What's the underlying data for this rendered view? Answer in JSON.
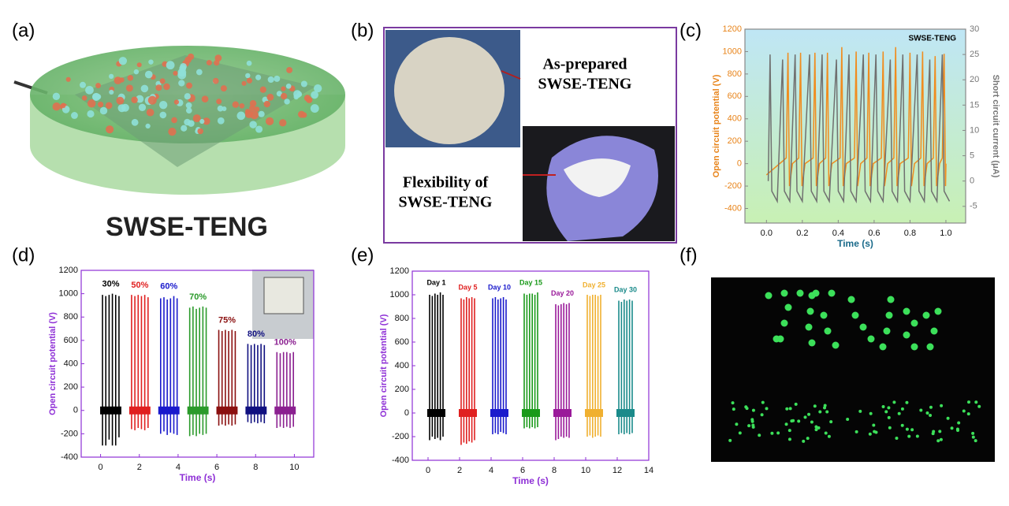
{
  "panels": {
    "a": "(a)",
    "b": "(b)",
    "c": "(c)",
    "d": "(d)",
    "e": "(e)",
    "f": "(f)"
  },
  "panel_a": {
    "caption": "SWSE-TENG"
  },
  "panel_b": {
    "top_text": [
      "As-prepared",
      "SWSE-TENG"
    ],
    "bottom_text": [
      "Flexibility of",
      "SWSE-TENG"
    ]
  },
  "chart_data": [
    {
      "type": "line",
      "title": "SWSE-TENG",
      "x_label": "Time (s)",
      "y_label": "Open circuit potential (V)",
      "y2_label": "Short circuit current (μA)",
      "xlim": [
        -0.12,
        1.11
      ],
      "ylim": [
        -530,
        1200
      ],
      "y2lim": [
        -8.3,
        30
      ],
      "xticks": [
        {
          "value": 0,
          "label": "0.0"
        },
        0.2,
        0.4,
        0.6,
        0.8,
        {
          "value": 1,
          "label": "1.0"
        }
      ],
      "yticks": [
        -400,
        -200,
        0,
        200,
        400,
        600,
        800,
        1000,
        1200
      ],
      "y2ticks": [
        -5,
        0,
        5,
        10,
        15,
        20,
        25,
        30
      ],
      "series": [
        {
          "color": "#f08c1e",
          "axis": "y",
          "x": [
            0,
            0.11,
            0.12,
            0.128,
            0.145,
            0.18,
            0.19,
            0.198,
            0.215,
            0.26,
            0.27,
            0.278,
            0.295,
            0.33,
            0.34,
            0.348,
            0.365,
            0.41,
            0.42,
            0.428,
            0.445,
            0.49,
            0.5,
            0.508,
            0.525,
            0.56,
            0.57,
            0.578,
            0.595,
            0.64,
            0.65,
            0.658,
            0.675,
            0.71,
            0.72,
            0.728,
            0.745,
            0.79,
            0.8,
            0.808,
            0.825,
            0.86,
            0.87,
            0.878,
            0.895,
            0.93,
            0.94,
            0.948,
            0.965,
            0.98,
            0.99,
            0.998,
            1.0
          ],
          "values": [
            -100,
            50,
            990,
            -200,
            0,
            50,
            990,
            -200,
            0,
            50,
            990,
            -200,
            0,
            50,
            990,
            -200,
            0,
            50,
            1040,
            -200,
            0,
            50,
            1000,
            -200,
            0,
            50,
            990,
            -200,
            0,
            50,
            1000,
            -200,
            0,
            50,
            1040,
            -200,
            0,
            50,
            990,
            -200,
            0,
            50,
            1000,
            -200,
            0,
            50,
            960,
            -200,
            0,
            50,
            980,
            -200,
            0
          ]
        },
        {
          "color": "#707070",
          "axis": "y2",
          "x": [
            0.01,
            0.02,
            0.03,
            0.06,
            0.09,
            0.1,
            0.13,
            0.16,
            0.17,
            0.2,
            0.24,
            0.25,
            0.28,
            0.31,
            0.32,
            0.35,
            0.39,
            0.4,
            0.43,
            0.46,
            0.47,
            0.5,
            0.54,
            0.55,
            0.58,
            0.61,
            0.62,
            0.65,
            0.69,
            0.7,
            0.73,
            0.76,
            0.77,
            0.8,
            0.84,
            0.85,
            0.88,
            0.91,
            0.92,
            0.95,
            0.98,
            0.99,
            1.02
          ],
          "values": [
            0,
            25,
            -2,
            -4,
            24,
            -2,
            -4,
            25,
            -2,
            -4,
            25,
            -2,
            -4,
            25,
            -2,
            -4,
            24,
            -2,
            -4,
            25,
            -2,
            -4,
            25,
            -2,
            -4,
            25,
            -2,
            -4,
            24,
            -2,
            -4,
            25,
            -2,
            -4,
            25,
            -2,
            -4,
            24,
            -2,
            -4,
            25,
            -2,
            -4
          ]
        }
      ]
    },
    {
      "type": "spike",
      "x_label": "Time (s)",
      "y_label": "Open circuit potential (V)",
      "xlim": [
        -1,
        11
      ],
      "ylim": [
        -400,
        1200
      ],
      "xticks": [
        0,
        2,
        4,
        6,
        8,
        10
      ],
      "yticks": [
        -400,
        -200,
        0,
        200,
        400,
        600,
        800,
        1000,
        1200
      ],
      "series": [
        {
          "name": "30%",
          "color": "#000000",
          "x": [
            0.1,
            0.27,
            0.44,
            0.61,
            0.78,
            0.95
          ],
          "values": [
            990,
            980,
            990,
            1000,
            990,
            980
          ],
          "lows": [
            -300,
            -300,
            -250,
            -300,
            -300,
            -230
          ]
        },
        {
          "name": "50%",
          "color": "#e02020",
          "x": [
            1.6,
            1.77,
            1.94,
            2.11,
            2.28,
            2.45
          ],
          "values": [
            990,
            980,
            990,
            980,
            990,
            970
          ],
          "lows": [
            -160,
            -170,
            -150,
            -160,
            -170,
            -150
          ]
        },
        {
          "name": "60%",
          "color": "#1a1acc",
          "x": [
            3.1,
            3.27,
            3.44,
            3.61,
            3.78,
            3.95
          ],
          "values": [
            960,
            970,
            950,
            960,
            980,
            960
          ],
          "lows": [
            -200,
            -180,
            -210,
            -190,
            -200,
            -210
          ]
        },
        {
          "name": "70%",
          "color": "#2a9a2a",
          "x": [
            4.6,
            4.77,
            4.94,
            5.11,
            5.28,
            5.45
          ],
          "values": [
            880,
            890,
            870,
            880,
            890,
            880
          ],
          "lows": [
            -220,
            -210,
            -220,
            -200,
            -210,
            -200
          ]
        },
        {
          "name": "75%",
          "color": "#8b1010",
          "x": [
            6.1,
            6.27,
            6.44,
            6.61,
            6.78,
            6.95
          ],
          "values": [
            690,
            680,
            690,
            680,
            690,
            680
          ],
          "lows": [
            -130,
            -120,
            -130,
            -120,
            -130,
            -120
          ]
        },
        {
          "name": "80%",
          "color": "#101080",
          "x": [
            7.6,
            7.77,
            7.94,
            8.11,
            8.28,
            8.45
          ],
          "values": [
            570,
            560,
            570,
            560,
            570,
            560
          ],
          "lows": [
            -100,
            -110,
            -100,
            -110,
            -100,
            -110
          ]
        },
        {
          "name": "100%",
          "color": "#8b2090",
          "x": [
            9.1,
            9.27,
            9.44,
            9.61,
            9.78,
            9.95
          ],
          "values": [
            500,
            490,
            500,
            500,
            490,
            500
          ],
          "lows": [
            -150,
            -140,
            -150,
            -140,
            -150,
            -140
          ]
        }
      ]
    },
    {
      "type": "spike",
      "x_label": "Time (s)",
      "y_label": "Open circuit potential (V)",
      "xlim": [
        -1,
        14
      ],
      "ylim": [
        -400,
        1200
      ],
      "xticks": [
        0,
        2,
        4,
        6,
        8,
        10,
        12,
        14
      ],
      "yticks": [
        -400,
        -200,
        0,
        200,
        400,
        600,
        800,
        1000,
        1200
      ],
      "series": [
        {
          "name": "Day 1",
          "color": "#000000",
          "x": [
            0.1,
            0.27,
            0.44,
            0.61,
            0.78,
            0.95
          ],
          "values": [
            1000,
            990,
            1010,
            1000,
            1020,
            1000
          ],
          "lows": [
            -230,
            -200,
            -220,
            -210,
            -230,
            -200
          ]
        },
        {
          "name": "Day 5",
          "color": "#e02020",
          "x": [
            2.1,
            2.27,
            2.44,
            2.61,
            2.78,
            2.95
          ],
          "values": [
            970,
            960,
            980,
            970,
            980,
            970
          ],
          "lows": [
            -270,
            -250,
            -260,
            -240,
            -250,
            -230
          ]
        },
        {
          "name": "Day 10",
          "color": "#1a1acc",
          "x": [
            4.1,
            4.27,
            4.44,
            4.61,
            4.78,
            4.95
          ],
          "values": [
            970,
            980,
            960,
            970,
            980,
            960
          ],
          "lows": [
            -180,
            -170,
            -180,
            -160,
            -170,
            -180
          ]
        },
        {
          "name": "Day 15",
          "color": "#1a9a1a",
          "x": [
            6.1,
            6.27,
            6.44,
            6.61,
            6.78,
            6.95
          ],
          "values": [
            1010,
            1000,
            1010,
            1010,
            1000,
            1020
          ],
          "lows": [
            -130,
            -120,
            -130,
            -120,
            -130,
            -120
          ]
        },
        {
          "name": "Day 20",
          "color": "#9a1a9a",
          "x": [
            8.1,
            8.27,
            8.44,
            8.61,
            8.78,
            8.95
          ],
          "values": [
            920,
            910,
            920,
            930,
            920,
            930
          ],
          "lows": [
            -230,
            -220,
            -200,
            -210,
            -200,
            -210
          ]
        },
        {
          "name": "Day 25",
          "color": "#f0b030",
          "x": [
            10.1,
            10.27,
            10.44,
            10.61,
            10.78,
            10.95
          ],
          "values": [
            1000,
            990,
            1000,
            1000,
            990,
            1000
          ],
          "lows": [
            -200,
            -190,
            -210,
            -200,
            -190,
            -200
          ]
        },
        {
          "name": "Day 30",
          "color": "#1a8a8a",
          "x": [
            12.1,
            12.27,
            12.44,
            12.61,
            12.78,
            12.95
          ],
          "values": [
            950,
            940,
            960,
            950,
            960,
            950
          ],
          "lows": [
            -180,
            -170,
            -180,
            -170,
            -180,
            -170
          ]
        }
      ]
    }
  ]
}
